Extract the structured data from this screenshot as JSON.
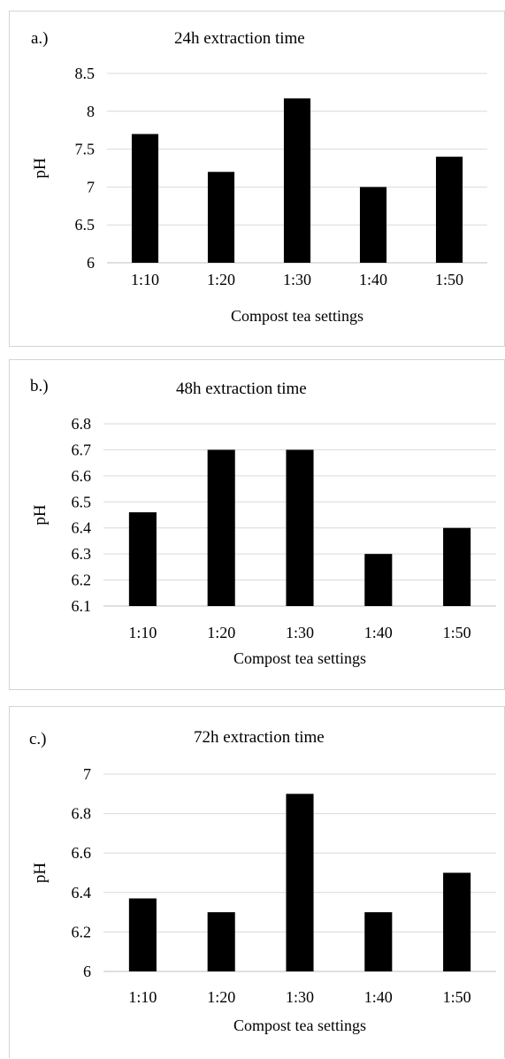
{
  "panels": [
    {
      "label": "a.)",
      "title": "24h extraction time"
    },
    {
      "label": "b.)",
      "title": "48h extraction time"
    },
    {
      "label": "c.)",
      "title": "72h extraction time"
    }
  ],
  "chart_data": [
    {
      "type": "bar",
      "title": "24h extraction time",
      "xlabel": "Compost tea settings",
      "ylabel": "pH",
      "categories": [
        "1:10",
        "1:20",
        "1:30",
        "1:40",
        "1:50"
      ],
      "values": [
        7.7,
        7.2,
        8.17,
        7.0,
        7.4
      ],
      "ylim": [
        6,
        8.5
      ],
      "yticks": [
        6,
        6.5,
        7,
        7.5,
        8,
        8.5
      ],
      "ytick_labels": [
        "6",
        "6.5",
        "7",
        "7.5",
        "8",
        "8.5"
      ],
      "bar_color": "#000000",
      "grid": true
    },
    {
      "type": "bar",
      "title": "48h extraction time",
      "xlabel": "Compost tea settings",
      "ylabel": "pH",
      "categories": [
        "1:10",
        "1:20",
        "1:30",
        "1:40",
        "1:50"
      ],
      "values": [
        6.46,
        6.7,
        6.7,
        6.3,
        6.4
      ],
      "ylim": [
        6.1,
        6.8
      ],
      "yticks": [
        6.1,
        6.2,
        6.3,
        6.4,
        6.5,
        6.6,
        6.7,
        6.8
      ],
      "ytick_labels": [
        "6.1",
        "6.2",
        "6.3",
        "6.4",
        "6.5",
        "6.6",
        "6.7",
        "6.8"
      ],
      "bar_color": "#000000",
      "grid": true
    },
    {
      "type": "bar",
      "title": "72h extraction time",
      "xlabel": "Compost tea settings",
      "ylabel": "pH",
      "categories": [
        "1:10",
        "1:20",
        "1:30",
        "1:40",
        "1:50"
      ],
      "values": [
        6.37,
        6.3,
        6.9,
        6.3,
        6.5
      ],
      "ylim": [
        6,
        7
      ],
      "yticks": [
        6,
        6.2,
        6.4,
        6.6,
        6.8,
        7
      ],
      "ytick_labels": [
        "6",
        "6.2",
        "6.4",
        "6.6",
        "6.8",
        "7"
      ],
      "bar_color": "#000000",
      "grid": true
    }
  ]
}
